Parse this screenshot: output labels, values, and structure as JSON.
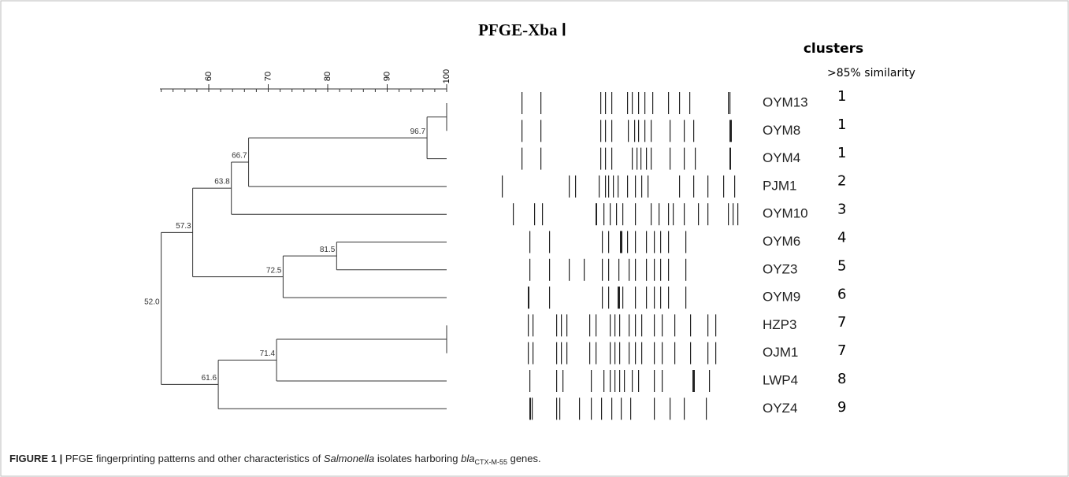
{
  "title": "PFGE-Xba Ⅰ",
  "columns": {
    "clusters": "clusters",
    "similarity": ">85% similarity"
  },
  "scale": {
    "ticks": [
      "60",
      "70",
      "80",
      "90",
      "100"
    ]
  },
  "samples": [
    {
      "name": "OYM13",
      "cluster": "1"
    },
    {
      "name": "OYM8",
      "cluster": "1"
    },
    {
      "name": "OYM4",
      "cluster": "1"
    },
    {
      "name": "PJM1",
      "cluster": "2"
    },
    {
      "name": "OYM10",
      "cluster": "3"
    },
    {
      "name": "OYM6",
      "cluster": "4"
    },
    {
      "name": "OYZ3",
      "cluster": "5"
    },
    {
      "name": "OYM9",
      "cluster": "6"
    },
    {
      "name": "HZP3",
      "cluster": "7"
    },
    {
      "name": "OJM1",
      "cluster": "7"
    },
    {
      "name": "LWP4",
      "cluster": "8"
    },
    {
      "name": "OYZ4",
      "cluster": "9"
    }
  ],
  "tree": {
    "label": "52.0",
    "children": [
      {
        "label": "57.3",
        "children": [
          {
            "label": "63.8",
            "children": [
              {
                "label": "66.7",
                "children": [
                  {
                    "label": "96.7",
                    "children": [
                      {
                        "children": [
                          0,
                          1
                        ]
                      },
                      2
                    ]
                  },
                  3
                ]
              },
              4
            ]
          },
          {
            "label": "72.5",
            "children": [
              {
                "label": "81.5",
                "children": [
                  5,
                  6
                ]
              },
              7
            ]
          }
        ]
      },
      {
        "label": "61.6",
        "children": [
          {
            "label": "71.4",
            "children": [
              {
                "children": [
                  8,
                  9
                ]
              },
              10
            ]
          },
          11
        ]
      }
    ]
  },
  "caption": {
    "label": "FIGURE 1 |",
    "text1": "PFGE fingerprinting patterns and other characteristics of",
    "organism": "Salmonella",
    "text2": "isolates harboring",
    "gene": "bla",
    "gene_sub": "CTX-M-55",
    "text3": "genes."
  }
}
